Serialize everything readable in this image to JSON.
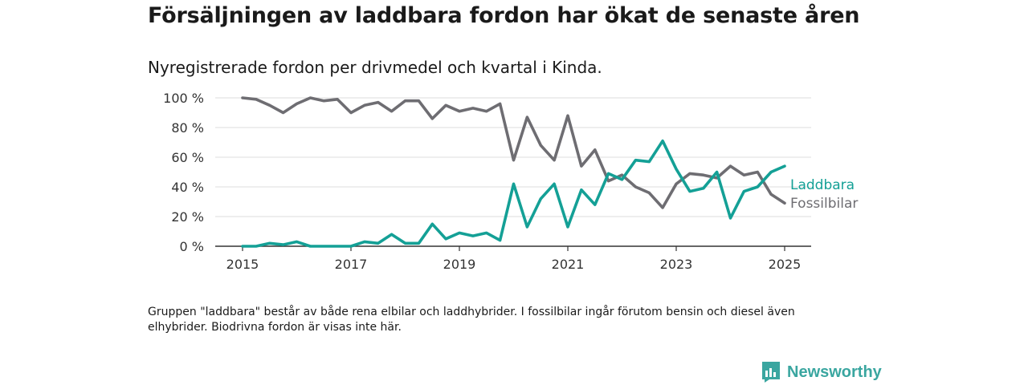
{
  "title": "Försäljningen av laddbara fordon har ökat de senaste åren",
  "subtitle": "Nyregistrerade fordon per drivmedel och kvartal i Kinda.",
  "footnote": "Gruppen \"laddbara\" består av både rena elbilar och laddhybrider. I fossilbilar ingår förutom bensin och diesel även elhybrider. Biodrivna fordon är visas inte här.",
  "brand": {
    "name": "Newsworthy",
    "icon": "newsworthy-logo-icon",
    "color": "#3aa6a0"
  },
  "chart_data": {
    "type": "line",
    "grid": true,
    "legend": "right, next to line ends",
    "ylim": [
      0,
      100
    ],
    "xlim": [
      2014.99,
      2025.01
    ],
    "y_ticks": [
      0,
      20,
      40,
      60,
      80,
      100
    ],
    "y_tick_labels": [
      "0 %",
      "20 %",
      "40 %",
      "60 %",
      "80 %",
      "100 %"
    ],
    "x_ticks": [
      2015,
      2017,
      2019,
      2021,
      2023,
      2025
    ],
    "x_tick_labels": [
      "2015",
      "2017",
      "2019",
      "2021",
      "2023",
      "2025"
    ],
    "x": [
      2015.0,
      2015.25,
      2015.5,
      2015.75,
      2016.0,
      2016.25,
      2016.5,
      2016.75,
      2017.0,
      2017.25,
      2017.5,
      2017.75,
      2018.0,
      2018.25,
      2018.5,
      2018.75,
      2019.0,
      2019.25,
      2019.5,
      2019.75,
      2020.0,
      2020.25,
      2020.5,
      2020.75,
      2021.0,
      2021.25,
      2021.5,
      2021.75,
      2022.0,
      2022.25,
      2022.5,
      2022.75,
      2023.0,
      2023.25,
      2023.5,
      2023.75,
      2024.0,
      2024.25,
      2024.5,
      2024.75,
      2025.0
    ],
    "series": [
      {
        "name": "Laddbara",
        "color": "#14a096",
        "values": [
          0,
          0,
          2,
          1,
          3,
          0,
          0,
          0,
          0,
          3,
          2,
          8,
          2,
          2,
          15,
          5,
          9,
          7,
          9,
          4,
          42,
          13,
          32,
          42,
          13,
          38,
          28,
          49,
          45,
          58,
          57,
          71,
          52,
          37,
          39,
          50,
          19,
          37,
          40,
          50,
          54
        ]
      },
      {
        "name": "Fossilbilar",
        "color": "#6e6d72",
        "values": [
          100,
          99,
          95,
          90,
          96,
          100,
          98,
          99,
          90,
          95,
          97,
          91,
          98,
          98,
          86,
          95,
          91,
          93,
          91,
          96,
          58,
          87,
          68,
          58,
          88,
          54,
          65,
          44,
          48,
          40,
          36,
          26,
          42,
          49,
          48,
          46,
          54,
          48,
          50,
          35,
          29
        ]
      }
    ]
  }
}
